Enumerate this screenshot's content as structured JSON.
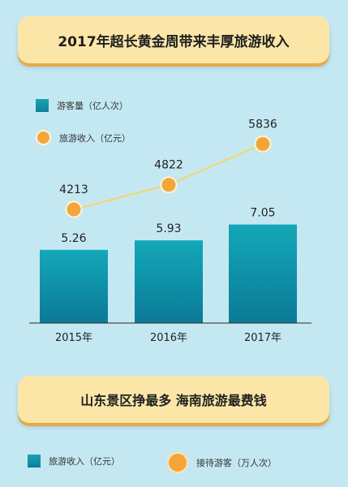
{
  "title": "2017年超长黄金周带来丰厚旅游收入",
  "subtitle": "山东景区挣最多 海南旅游最费钱",
  "legend_top": {
    "bar_label": "游客量（亿人次）",
    "line_label": "旅游收入（亿元）"
  },
  "legend_bottom": {
    "bar_label": "旅游收入（亿元）",
    "dot_label": "接待游客（万人次）"
  },
  "colors": {
    "bar": "#0e8fa7",
    "line": "#f7d56a",
    "dot": "#f4a53a"
  },
  "chart_data": {
    "type": "bar",
    "categories": [
      "2015年",
      "2016年",
      "2017年"
    ],
    "series": [
      {
        "name": "游客量（亿人次）",
        "type": "bar",
        "values": [
          5.26,
          5.93,
          7.05
        ]
      },
      {
        "name": "旅游收入（亿元）",
        "type": "line",
        "values": [
          4213,
          4822,
          5836
        ]
      }
    ],
    "title": "2017年超长黄金周带来丰厚旅游收入"
  }
}
